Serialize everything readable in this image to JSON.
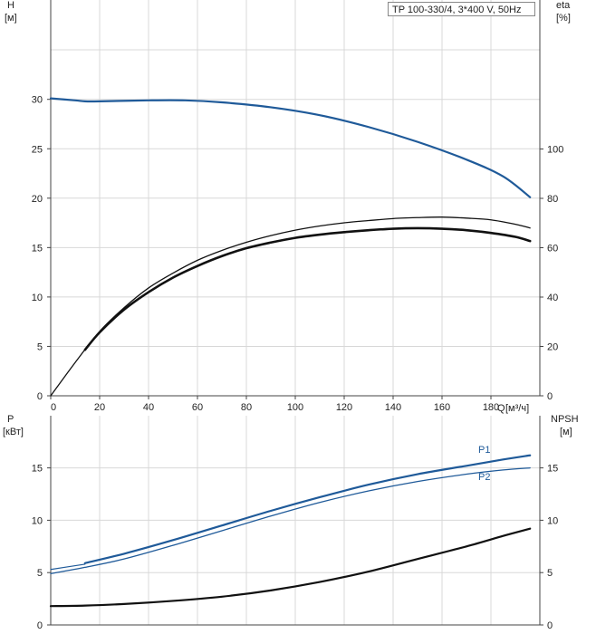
{
  "pump_label": "TP 100-330/4, 3*400 V, 50Hz",
  "chart_data": [
    {
      "type": "line",
      "panel": "head-efficiency",
      "x_axis": {
        "name": "Q",
        "unit": "[м³/ч]",
        "range": [
          0,
          200
        ],
        "ticks": [
          "0",
          "20",
          "40",
          "60",
          "80",
          "100",
          "120",
          "140",
          "160",
          "180"
        ]
      },
      "y_left": {
        "name": "H",
        "unit": "[м]",
        "range": [
          0,
          35
        ],
        "ticks": [
          "0",
          "5",
          "10",
          "15",
          "20",
          "25",
          "30"
        ]
      },
      "y_right": {
        "name": "eta",
        "unit": "[%]",
        "range": [
          0,
          120
        ],
        "ticks": [
          "0",
          "20",
          "40",
          "60",
          "80",
          "100"
        ]
      },
      "grid": true,
      "series": [
        {
          "key": "H",
          "axis": "left",
          "color": "#1f5a99",
          "width": 2.2,
          "x": [
            0,
            10,
            14,
            20,
            40,
            55,
            70,
            90,
            110,
            130,
            150,
            170,
            185,
            196
          ],
          "y": [
            30.1,
            29.9,
            29.8,
            29.8,
            29.9,
            29.9,
            29.7,
            29.2,
            28.4,
            27.2,
            25.7,
            23.9,
            22.2,
            20.1
          ]
        },
        {
          "key": "eta_thin",
          "axis": "right",
          "color": "#111111",
          "width": 1.3,
          "x": [
            0,
            10,
            20,
            30,
            40,
            50,
            60,
            70,
            80,
            90,
            100,
            110,
            120,
            130,
            140,
            150,
            160,
            170,
            180,
            190,
            196
          ],
          "y": [
            0,
            13.5,
            26.1,
            35.7,
            43.7,
            49.7,
            54.9,
            58.9,
            62.2,
            64.9,
            67.1,
            68.8,
            70.1,
            71.0,
            71.8,
            72.2,
            72.4,
            72.0,
            71.3,
            69.5,
            68.0
          ]
        },
        {
          "key": "eta_thick",
          "axis": "right",
          "color": "#111111",
          "width": 2.6,
          "x": [
            14,
            20,
            30,
            40,
            50,
            60,
            70,
            80,
            90,
            100,
            110,
            120,
            130,
            140,
            150,
            160,
            170,
            180,
            190,
            196
          ],
          "y": [
            18.6,
            25.7,
            34.9,
            42.0,
            47.9,
            52.6,
            56.6,
            59.8,
            62.1,
            64.0,
            65.3,
            66.3,
            67.1,
            67.7,
            67.9,
            67.7,
            67.1,
            66.0,
            64.4,
            62.7
          ]
        }
      ]
    },
    {
      "type": "line",
      "panel": "power-npsh",
      "x_axis": {
        "name": "Q",
        "unit": "[м³/ч]",
        "range": [
          0,
          200
        ]
      },
      "y_left": {
        "name": "P",
        "unit": "[кВт]",
        "range": [
          0,
          20
        ],
        "ticks": [
          "0",
          "5",
          "10",
          "15"
        ]
      },
      "y_right": {
        "name": "NPSH",
        "unit": "[м]",
        "range": [
          0,
          20
        ],
        "ticks": [
          "0",
          "5",
          "10",
          "15"
        ]
      },
      "grid": true,
      "series": [
        {
          "key": "P1",
          "name": "P1",
          "axis": "left",
          "color": "#1f5a99",
          "width": 2.2,
          "x": [
            14,
            30,
            50,
            70,
            90,
            110,
            130,
            150,
            170,
            185,
            196
          ],
          "y": [
            5.9,
            6.8,
            8.1,
            9.5,
            10.9,
            12.2,
            13.4,
            14.4,
            15.2,
            15.8,
            16.2
          ]
        },
        {
          "key": "P2",
          "name": "P2",
          "axis": "left",
          "color": "#1f5a99",
          "width": 1.3,
          "x": [
            0,
            14,
            30,
            50,
            70,
            90,
            110,
            130,
            150,
            170,
            185,
            196
          ],
          "y": [
            4.9,
            5.5,
            6.3,
            7.6,
            9.0,
            10.4,
            11.7,
            12.8,
            13.7,
            14.4,
            14.8,
            15.0
          ]
        },
        {
          "key": "P_pre",
          "axis": "left",
          "color": "#1f5a99",
          "width": 1.2,
          "x": [
            0,
            14
          ],
          "y": [
            5.3,
            5.8
          ]
        },
        {
          "key": "NPSH",
          "axis": "right",
          "color": "#111111",
          "width": 2.2,
          "x": [
            0,
            14,
            30,
            50,
            70,
            90,
            110,
            130,
            150,
            170,
            185,
            196
          ],
          "y": [
            1.8,
            1.85,
            2.0,
            2.3,
            2.7,
            3.3,
            4.1,
            5.1,
            6.3,
            7.5,
            8.5,
            9.2
          ]
        }
      ]
    }
  ]
}
